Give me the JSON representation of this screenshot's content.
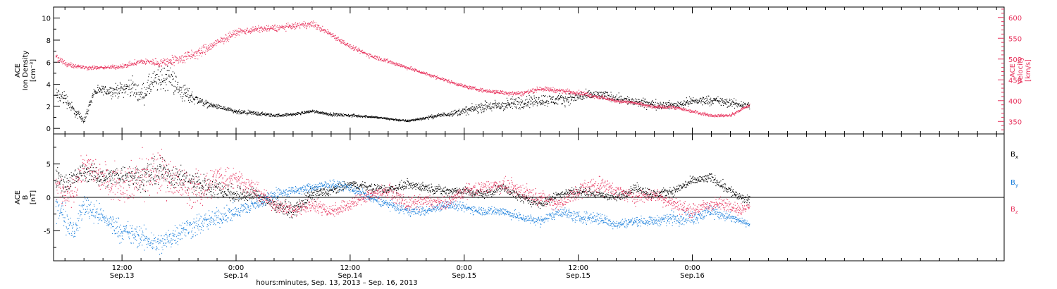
{
  "colors": {
    "density": "#000000",
    "velocity": "#e8345e",
    "bx": "#000000",
    "by": "#1a7fdc",
    "bz": "#e8345e",
    "frame": "#000000"
  },
  "x_axis": {
    "title": "hours:minutes, Sep. 13, 2013 – Sep. 16, 2013",
    "unit": "hours since Sep. 13 0:00",
    "range": [
      4.8,
      104.8
    ],
    "ticks": [
      {
        "t": 12,
        "time": "12:00",
        "date": "Sep.13"
      },
      {
        "t": 24,
        "time": "0:00",
        "date": "Sep.14"
      },
      {
        "t": 36,
        "time": "12:00",
        "date": "Sep.14"
      },
      {
        "t": 48,
        "time": "0:00",
        "date": "Sep.15"
      },
      {
        "t": 60,
        "time": "12:00",
        "date": "Sep.15"
      },
      {
        "t": 72,
        "time": "0:00",
        "date": "Sep.16"
      }
    ],
    "minor_step": 2
  },
  "chart_data": [
    {
      "type": "scatter",
      "panel": "top",
      "left_axis": {
        "label_lines": [
          "ACE",
          "Ion Density",
          "[cm⁻³]"
        ],
        "range": [
          -0.5,
          11
        ],
        "ticks": [
          0,
          2,
          4,
          6,
          8,
          10
        ]
      },
      "right_axis": {
        "label_lines": [
          "ACE",
          "Velocity",
          "[km/s]"
        ],
        "range": [
          320,
          625
        ],
        "ticks": [
          350,
          400,
          450,
          500,
          550,
          600
        ]
      },
      "series": [
        {
          "name": "Ion Density",
          "axis": "left",
          "color_key": "density",
          "x": [
            5,
            6,
            7,
            8,
            9,
            10,
            11,
            12,
            13,
            14,
            15,
            16,
            17,
            18,
            19,
            20,
            21,
            22,
            24,
            26,
            28,
            30,
            32,
            34,
            36,
            38,
            40,
            42,
            44,
            46,
            48,
            50,
            52,
            54,
            56,
            58,
            60,
            62,
            64,
            66,
            68,
            70,
            72,
            74,
            76,
            78
          ],
          "y": [
            3.0,
            2.8,
            1.5,
            0.8,
            3.3,
            3.5,
            3.4,
            3.6,
            3.8,
            3.0,
            4.0,
            4.5,
            4.8,
            3.5,
            3.0,
            2.6,
            2.2,
            2.0,
            1.5,
            1.4,
            1.2,
            1.3,
            1.6,
            1.3,
            1.2,
            1.1,
            0.9,
            0.7,
            1.0,
            1.3,
            1.6,
            2.0,
            2.1,
            2.4,
            2.6,
            2.6,
            2.9,
            3.1,
            2.8,
            2.4,
            2.2,
            2.1,
            2.5,
            2.6,
            2.3,
            2.1
          ],
          "spread": [
            1.2,
            1.0,
            0.6,
            0.5,
            0.6,
            0.6,
            0.8,
            1.0,
            1.2,
            1.3,
            1.5,
            1.8,
            1.8,
            1.5,
            1.0,
            0.6,
            0.4,
            0.3,
            0.3,
            0.3,
            0.2,
            0.2,
            0.2,
            0.2,
            0.2,
            0.15,
            0.15,
            0.15,
            0.2,
            0.3,
            0.5,
            0.7,
            0.8,
            0.9,
            0.8,
            0.8,
            0.7,
            0.6,
            0.6,
            0.6,
            0.6,
            0.5,
            0.6,
            0.6,
            0.6,
            0.5
          ]
        },
        {
          "name": "Velocity",
          "axis": "right",
          "color_key": "velocity",
          "x": [
            5,
            6,
            7,
            8,
            10,
            12,
            14,
            16,
            18,
            20,
            22,
            24,
            26,
            28,
            30,
            32,
            34,
            36,
            38,
            40,
            42,
            44,
            46,
            48,
            50,
            52,
            54,
            56,
            58,
            60,
            62,
            64,
            66,
            68,
            70,
            72,
            74,
            76,
            77,
            78
          ],
          "y": [
            505,
            490,
            485,
            480,
            480,
            483,
            495,
            492,
            500,
            515,
            540,
            565,
            572,
            575,
            580,
            585,
            560,
            530,
            510,
            495,
            480,
            465,
            450,
            435,
            425,
            420,
            418,
            430,
            425,
            420,
            410,
            400,
            395,
            385,
            385,
            375,
            365,
            365,
            378,
            390
          ],
          "spread": [
            15,
            12,
            8,
            8,
            6,
            8,
            10,
            15,
            20,
            20,
            15,
            12,
            12,
            12,
            10,
            12,
            10,
            8,
            8,
            8,
            6,
            6,
            6,
            6,
            6,
            8,
            8,
            8,
            8,
            8,
            8,
            6,
            6,
            6,
            6,
            6,
            5,
            5,
            5,
            5
          ]
        }
      ]
    },
    {
      "type": "scatter",
      "panel": "bottom",
      "left_axis": {
        "label_lines": [
          "ACE",
          "B",
          "[nT]"
        ],
        "range": [
          -9.5,
          9.5
        ],
        "ticks": [
          -5,
          0,
          5
        ]
      },
      "zero_line": true,
      "legend": {
        "placement": "right",
        "entries": [
          {
            "base": "B",
            "sub": "x",
            "color_key": "bx"
          },
          {
            "base": "B",
            "sub": "y",
            "color_key": "by"
          },
          {
            "base": "B",
            "sub": "z",
            "color_key": "bz"
          }
        ]
      },
      "series": [
        {
          "name": "Bx",
          "color_key": "bx",
          "x": [
            5,
            6,
            7,
            8,
            10,
            12,
            14,
            16,
            18,
            20,
            22,
            24,
            26,
            28,
            30,
            32,
            34,
            36,
            38,
            40,
            42,
            44,
            46,
            48,
            50,
            52,
            54,
            56,
            58,
            60,
            62,
            64,
            66,
            68,
            70,
            72,
            74,
            76,
            77,
            78
          ],
          "y": [
            3,
            2,
            3,
            4,
            3,
            3.5,
            3,
            4,
            3,
            2,
            1.5,
            0.5,
            0.5,
            -1,
            -2,
            0.5,
            1,
            2,
            1.5,
            1.2,
            2,
            1.5,
            1,
            1,
            0.5,
            1.5,
            0,
            -1,
            0.5,
            1,
            0.5,
            0,
            1.5,
            0.5,
            1,
            2.5,
            3,
            1,
            0,
            -0.5
          ],
          "spread": [
            2.5,
            2.5,
            2,
            2,
            2,
            2,
            3,
            3,
            2.5,
            2.5,
            2,
            2,
            1.5,
            1.5,
            1.5,
            1.5,
            1,
            1,
            1,
            1,
            1,
            1,
            1,
            1,
            1,
            1,
            1,
            1,
            1,
            1,
            1,
            1,
            1,
            1,
            1,
            1,
            1,
            1.2,
            1,
            1
          ]
        },
        {
          "name": "By",
          "color_key": "by",
          "x": [
            5,
            6,
            7,
            8,
            10,
            12,
            14,
            16,
            18,
            20,
            22,
            24,
            26,
            28,
            30,
            32,
            34,
            36,
            38,
            40,
            42,
            44,
            46,
            48,
            50,
            52,
            54,
            56,
            58,
            60,
            62,
            64,
            66,
            68,
            70,
            72,
            74,
            76,
            77,
            78
          ],
          "y": [
            -1,
            -3,
            -5,
            -1,
            -3,
            -5,
            -6,
            -7,
            -5,
            -4,
            -3,
            -2,
            -1,
            0.5,
            1,
            1.5,
            2,
            1.5,
            0,
            -1,
            -2,
            -2,
            -1,
            -1.5,
            -2,
            -2,
            -3,
            -3.5,
            -2,
            -3,
            -3,
            -4,
            -3.5,
            -3.5,
            -3,
            -3,
            -2,
            -3,
            -3.5,
            -4
          ],
          "spread": [
            3,
            3,
            2,
            3,
            2,
            2.5,
            2.5,
            2.5,
            2.5,
            2.5,
            2,
            2,
            1.5,
            1.5,
            1,
            1,
            1,
            1,
            1,
            1,
            1,
            1,
            1,
            1,
            1,
            1,
            1,
            1,
            1.2,
            1.2,
            1.5,
            1,
            1,
            1,
            1.5,
            1.5,
            1.5,
            1,
            0.8,
            0.5
          ]
        },
        {
          "name": "Bz",
          "color_key": "bz",
          "x": [
            5,
            6,
            7,
            8,
            10,
            12,
            14,
            16,
            18,
            20,
            22,
            24,
            26,
            28,
            30,
            32,
            34,
            36,
            38,
            40,
            42,
            44,
            46,
            48,
            50,
            52,
            54,
            56,
            58,
            60,
            62,
            64,
            66,
            68,
            70,
            72,
            74,
            76,
            77,
            78
          ],
          "y": [
            2,
            0,
            1,
            5,
            3,
            2,
            3,
            4,
            2,
            1,
            3,
            3,
            1,
            -1,
            -2,
            -1,
            -2,
            -1,
            0.5,
            1,
            -1,
            -0.5,
            -1,
            1,
            1.5,
            2,
            1,
            0,
            -1,
            1,
            2,
            1,
            0,
            0.5,
            -1,
            -2,
            -1,
            -1,
            -2,
            -1
          ],
          "spread": [
            3,
            3,
            3,
            3,
            3.5,
            4,
            5,
            5,
            4,
            4,
            3,
            2.5,
            2,
            1.5,
            1.5,
            1.5,
            1.5,
            1.5,
            1.5,
            1.5,
            1.5,
            1.5,
            1.5,
            1.5,
            1.5,
            1.5,
            2,
            1.5,
            1.5,
            2,
            2,
            1.5,
            1.5,
            1.5,
            1.5,
            1.5,
            1.5,
            1.5,
            1.2,
            1
          ]
        }
      ]
    }
  ]
}
